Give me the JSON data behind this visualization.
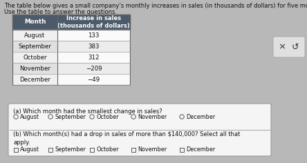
{
  "title_line1": "The table below gives a small company’s monthly increases in sales (in thousands of dollars) for five months.",
  "title_line2": "Use the table to answer the questions.",
  "header_col1": "Month",
  "header_col2": "Increase in sales\n(thousands of dollars)",
  "months": [
    "August",
    "September",
    "October",
    "November",
    "December"
  ],
  "values": [
    "133",
    "383",
    "312",
    "−209",
    "−49"
  ],
  "question_a": "(a) Which month had the smallest change in sales?",
  "radio_options": [
    "August",
    "September",
    "October",
    "November",
    "December"
  ],
  "question_b": "(b) Which month(s) had a drop in sales of more than $140,000? Select all that\napply.",
  "checkbox_options": [
    "August",
    "September",
    "October",
    "November",
    "December"
  ],
  "header_bg": "#4d5a6a",
  "header_text_color": "#ffffff",
  "row_bg_light": "#f0f0f0",
  "row_bg_mid": "#e0e0e0",
  "table_border": "#888888",
  "question_box_bg": "#f5f5f5",
  "question_box_border": "#999999",
  "btn_bg": "#e0e0e0",
  "btn_border": "#aaaaaa",
  "bg_color": "#b8b8b8",
  "text_color": "#111111",
  "fig_width": 4.44,
  "fig_height": 2.36,
  "title_fontsize": 6.0,
  "table_fontsize": 6.2,
  "header_fontsize": 6.3,
  "q_fontsize": 6.0,
  "opt_fontsize": 5.8
}
